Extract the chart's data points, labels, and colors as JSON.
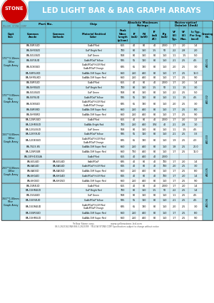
{
  "title": "LED LIGHT BAR & BAR GRAPH ARRAYS",
  "bg_color": "#FFFFFF",
  "table_header_color": "#6EC6D8",
  "section_bg": "#8DCFDD",
  "row_alt_color": "#E0F4F8",
  "sections": [
    {
      "label": "1.70\"*3.10mm\n10Bar\nGraph Array",
      "rows": [
        [
          "BA-5SR3UD",
          "",
          "GaAsP Red",
          "655",
          "40",
          "80",
          "40",
          "2000",
          "1.7",
          "2.0",
          "1.4"
        ],
        [
          "BA-5HR3UD",
          "",
          "GaP Bright Red",
          "700",
          "80",
          "160",
          "1.5",
          "50",
          "2.2",
          "2.8",
          "2.0"
        ],
        [
          "BA-5GU3UD",
          "",
          "GaP Green",
          "568",
          "80",
          "160",
          "80",
          "150",
          "1.1",
          "1.5",
          "5.0"
        ],
        [
          "BA-5SY3UD",
          "",
          "GaAsP/GaP Yellow",
          "585",
          "55",
          "110",
          "80",
          "150",
          "2.1",
          "2.5",
          "4.5"
        ],
        [
          "BA-5OE3UD",
          "",
          "GaAsP/GaP Hi-Eff Red\nGaAsP/GaP Orange",
          "635",
          "65",
          "130",
          "80",
          "150",
          "2.0",
          "2.5",
          "3.0"
        ],
        [
          "BA-5SR5LKD",
          "",
          "GaAlAs Diff Super Red",
          "660",
          "250",
          "460",
          "80",
          "150",
          "1.7",
          "2.5",
          "18.0"
        ],
        [
          "BA-5HR5LKD",
          "",
          "GaAlAs Diff Super Red",
          "660",
          "250",
          "460",
          "80",
          "150",
          "1.7",
          "2.5",
          "9.0"
        ]
      ],
      "drawing": "A/D-01"
    },
    {
      "label": "1.70\"*3.00mm\n5Bar\nGraph Array",
      "rows": [
        [
          "BA-5SR5UD",
          "",
          "GaAsP Red",
          "655",
          "40",
          "80",
          "40",
          "2000",
          "1.7",
          "2.0",
          "1.4"
        ],
        [
          "BA-5HR5UD",
          "",
          "GaP Bright Red",
          "700",
          "80",
          "160",
          "1.5",
          "50",
          "1.1",
          "1.5",
          "3.0"
        ],
        [
          "BA-5GU5UD",
          "",
          "GaP Green",
          "568",
          "80",
          "160",
          "80",
          "150",
          "2.2",
          "2.5",
          "5.0"
        ],
        [
          "BA-5SY5UD",
          "",
          "GaAsP/GaP Yellow",
          "585",
          "55",
          "110",
          "80",
          "150",
          "1.1",
          "1.5",
          "4.5"
        ],
        [
          "BA-5OE5UD",
          "",
          "GaAsP/GaP Hi-Eff Red\nGaAsP/GaP Orange",
          "635",
          "65",
          "130",
          "80",
          "150",
          "2.0",
          "2.5",
          "3.0"
        ],
        [
          "BA-5SR5RD",
          "",
          "GaAlAs Diff Super Red",
          "660",
          "250",
          "460",
          "80",
          "150",
          "1.7",
          "2.5",
          "8.0"
        ],
        [
          "BA-5HR5RD",
          "",
          "GaAlAs Diff Super Red",
          "660",
          "250",
          "460",
          "80",
          "150",
          "1.7",
          "2.5",
          "9.0"
        ]
      ],
      "drawing": "A/D-02"
    },
    {
      "label": "1.50\"*4.00mm\n12Bar\nGraph Array",
      "rows": [
        [
          "BA-12SR3UD",
          "",
          "GaAsP Red",
          "655",
          "40",
          "80",
          "40",
          "2000",
          "1.7",
          "2.0",
          "1.2"
        ],
        [
          "BA-12HR3UD",
          "",
          "GaAlAs Bright Red",
          "700",
          "250",
          "460",
          "374",
          "40",
          "2.1",
          "2.8",
          "1.0"
        ],
        [
          "BA-12GU3UD",
          "",
          "GaP Green",
          "568",
          "80",
          "160",
          "80",
          "150",
          "1.1",
          "1.5",
          "4.5"
        ],
        [
          "BA-12SY3UD",
          "",
          "GaAsP/GaP Yellow",
          "585",
          "55",
          "110",
          "80",
          "150",
          "2.1",
          "2.5",
          "3.3"
        ],
        [
          "BA-12OE3UD",
          "",
          "GaAsP/GaP Hi-Eff Red\nGaAsP/GaP Orange",
          "635",
          "65",
          "130",
          "80",
          "150",
          "1.9",
          "2.5",
          "4.3"
        ],
        [
          "BA-7U23.85",
          "",
          "GaAlAs Diff Super Red",
          "660",
          "250",
          "460",
          "80",
          "150",
          "1.8",
          "2.5",
          "20.0"
        ],
        [
          "BA-12SR5UB",
          "",
          "GaAlAs Diff Super Red",
          "660",
          "750",
          "460",
          "80",
          "150",
          "1.7",
          "2.5",
          "11.0"
        ],
        [
          "BA-10FH101UA",
          "",
          "GaAsP Red",
          "655",
          "40",
          "460",
          "40",
          "2000",
          "",
          "",
          ""
        ]
      ],
      "drawing": "A/D-03"
    },
    {
      "label": "2.50\"*4.00mm\n10Bar\nGraph Array",
      "rows": [
        [
          "BA-6GU4D",
          "BA-6GU4D",
          "GaAsP/GaP",
          "635",
          "40",
          "80",
          "40",
          "700",
          "1.7",
          "2.0",
          "1.4"
        ],
        [
          "BA-6AG4D",
          "BA-6AG4D",
          "GaAsP/GaP Hi-Eff Red",
          "615",
          "40",
          "80",
          "40",
          "700",
          "2.0",
          "2.5",
          "3.0"
        ],
        [
          "BA-6AG5D",
          "BA-6AG5D",
          "GaAlAs Diff Super Red",
          "660",
          "250",
          "460",
          "80",
          "150",
          "1.7",
          "2.5",
          "8.0"
        ],
        [
          "BA-6HG4D",
          "BA-6HG4D",
          "GaAsP/GaP Hi-Eff Red",
          "615",
          "40",
          "80",
          "40",
          "700",
          "1.7",
          "2.0",
          "1.4"
        ],
        [
          "BA-6HG5D",
          "BA-6HG5D",
          "GaAlAs Diff Super Red",
          "660",
          "250",
          "460",
          "80",
          "150",
          "1.7",
          "2.5",
          "9.0"
        ]
      ],
      "drawing": "A/D-05"
    },
    {
      "label": "3.50\"*1.00mm\n5Bar\nGraph Array",
      "rows": [
        [
          "BA-15R4UD",
          "",
          "GaAsP Red",
          "655",
          "40",
          "80",
          "40",
          "2000",
          "1.7",
          "2.0",
          "1.4"
        ],
        [
          "BA-15HR4UD",
          "",
          "GaP Bright Red",
          "700",
          "80",
          "160",
          "1.5",
          "50",
          "2.2",
          "2.5",
          "1.4"
        ],
        [
          "BA-15G4UD",
          "",
          "GaP Green",
          "568",
          "80",
          "160",
          "80",
          "150",
          "1.1",
          "2.5",
          "4.5"
        ],
        [
          "BA-15SY4UD",
          "",
          "GaAsP/GaP Yellow",
          "585",
          "55",
          "110",
          "80",
          "150",
          "2.1",
          "2.5",
          "4.5"
        ],
        [
          "BA-15OR4UD",
          "",
          "GaAsP/GaP Hi-Eff Red\nGaAsP/GaP Orange",
          "635",
          "65",
          "130",
          "80",
          "150",
          "2.0",
          "2.5",
          "3.0"
        ],
        [
          "BA-15SR5UD",
          "",
          "GaAlAs Diff Super Red",
          "660",
          "250",
          "460",
          "80",
          "150",
          "1.7",
          "2.5",
          "8.0"
        ],
        [
          "BA-15HR5UD",
          "",
          "GaAlAs Diff Super Red",
          "660",
          "250",
          "460",
          "80",
          "150",
          "1.7",
          "2.5",
          "9.0"
        ]
      ],
      "drawing": "A/D-06"
    }
  ]
}
